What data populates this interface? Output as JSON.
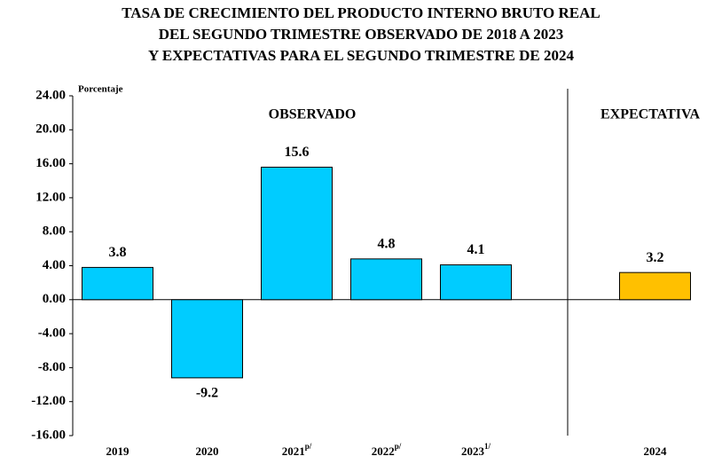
{
  "chart_data": {
    "type": "bar",
    "title_lines": [
      "TASA DE CRECIMIENTO DEL PRODUCTO INTERNO BRUTO REAL",
      "DEL SEGUNDO TRIMESTRE OBSERVADO DE 2018 A 2023",
      "Y EXPECTATIVAS PARA EL SEGUNDO TRIMESTRE DE 2024"
    ],
    "y_label": "Porcentaje",
    "section_labels": [
      "OBSERVADO",
      "EXPECTATIVA"
    ],
    "categories": [
      "2019",
      "2020",
      "2021",
      "2022",
      "2023",
      "2024"
    ],
    "category_notes": [
      null,
      null,
      "p/",
      "p/",
      "1/",
      null
    ],
    "values": [
      3.8,
      -9.2,
      15.6,
      4.8,
      4.1,
      3.2
    ],
    "colors": [
      "#00ccff",
      "#00ccff",
      "#00ccff",
      "#00ccff",
      "#00ccff",
      "#ffc000"
    ],
    "ylim": [
      -16,
      24
    ],
    "yticks": [
      {
        "value": 24,
        "label": "24.00"
      },
      {
        "value": 20,
        "label": "20.00"
      },
      {
        "value": 16,
        "label": "16.00"
      },
      {
        "value": 12,
        "label": "12.00"
      },
      {
        "value": 8,
        "label": "8.00"
      },
      {
        "value": 4,
        "label": "4.00"
      },
      {
        "value": 0,
        "label": "0.00"
      },
      {
        "value": -4,
        "label": "-4.00"
      },
      {
        "value": -8,
        "label": "-8.00"
      },
      {
        "value": -12,
        "label": "-12.00"
      },
      {
        "value": -16,
        "label": "-16.00"
      }
    ]
  }
}
